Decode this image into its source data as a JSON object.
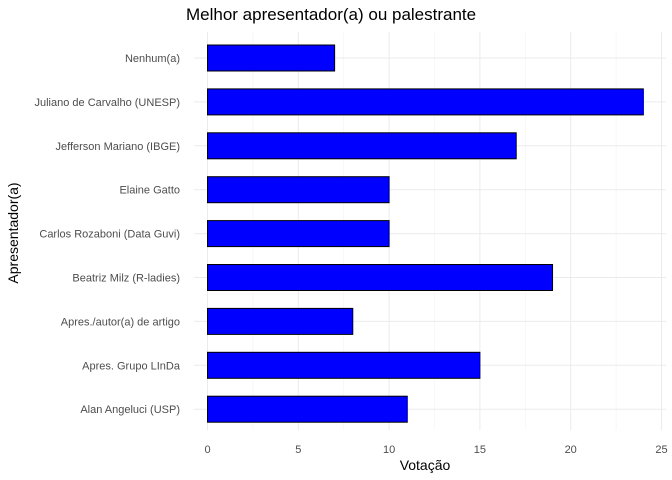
{
  "chart_data": {
    "type": "bar",
    "orientation": "horizontal",
    "title": "Melhor apresentador(a) ou palestrante",
    "xlabel": "Votação",
    "ylabel": "Apresentador(a)",
    "categories": [
      "Nenhum(a)",
      "Juliano de Carvalho (UNESP)",
      "Jefferson Mariano (IBGE)",
      "Elaine Gatto",
      "Carlos Rozaboni (Data Guvi)",
      "Beatriz Milz (R-ladies)",
      "Apres./autor(a) de artigo",
      "Apres. Grupo LInDa",
      "Alan Angeluci (USP)"
    ],
    "values": [
      7,
      24,
      17,
      10,
      10,
      19,
      8,
      15,
      11
    ],
    "xlim": [
      0,
      25
    ],
    "xticks": [
      0,
      5,
      10,
      15,
      20,
      25
    ],
    "grid": true,
    "bar_color": "#0000FF",
    "bar_border_color": "#000000"
  }
}
